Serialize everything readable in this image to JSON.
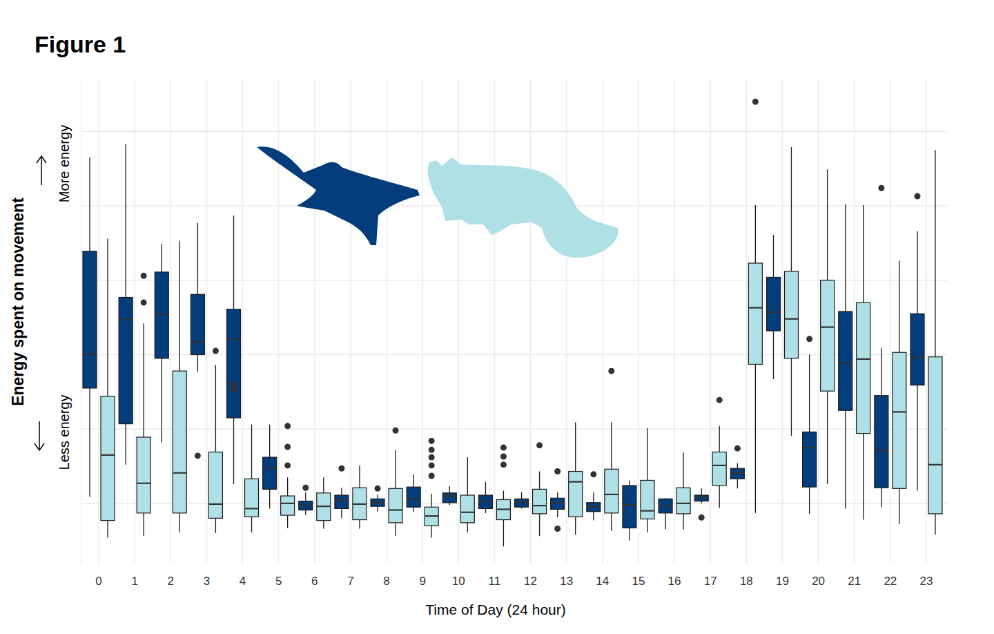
{
  "chart_data": {
    "type": "box",
    "title": "Figure 1",
    "x_label": "Time of Day (24 hour)",
    "y_label": "Energy spent on movement",
    "annotations": [
      "More energy",
      "Less energy"
    ],
    "categories": [
      0,
      1,
      2,
      3,
      4,
      5,
      6,
      7,
      8,
      9,
      10,
      11,
      12,
      13,
      14,
      15,
      16,
      17,
      18,
      19,
      20,
      21,
      22,
      23
    ],
    "ylim": [
      -0.8,
      5.7
    ],
    "yticks": [
      0,
      1,
      2,
      3,
      4,
      5
    ],
    "tick_labels": "x",
    "grid": true,
    "series": [
      {
        "color": "#033d7c",
        "values": [
          {
            "min": 0.09,
            "q1": 1.55,
            "median": 2.01,
            "q3": 3.39,
            "max": 4.65,
            "outliers": []
          },
          {
            "min": 0.52,
            "q1": 1.07,
            "median": 2.47,
            "q3": 2.77,
            "max": 4.83,
            "outliers": []
          },
          {
            "min": 0.82,
            "q1": 1.95,
            "median": 2.54,
            "q3": 3.11,
            "max": 3.49,
            "outliers": []
          },
          {
            "min": 1.77,
            "q1": 2.0,
            "median": 2.17,
            "q3": 2.81,
            "max": 3.77,
            "outliers": [
              0.64
            ]
          },
          {
            "min": 0.26,
            "q1": 1.15,
            "median": 2.21,
            "q3": 2.61,
            "max": 3.87,
            "outliers": [
              1.6,
              1.54
            ]
          },
          {
            "min": -0.07,
            "q1": 0.19,
            "median": 0.48,
            "q3": 0.62,
            "max": 1.06,
            "outliers": []
          },
          {
            "min": -0.16,
            "q1": -0.09,
            "median": -0.03,
            "q3": 0.03,
            "max": 0.15,
            "outliers": [
              0.21
            ]
          },
          {
            "min": -0.2,
            "q1": -0.07,
            "median": 0.04,
            "q3": 0.11,
            "max": 0.21,
            "outliers": [
              0.47
            ]
          },
          {
            "min": -0.11,
            "q1": -0.04,
            "median": 0.01,
            "q3": 0.06,
            "max": 0.12,
            "outliers": [
              0.2
            ]
          },
          {
            "min": -0.11,
            "q1": -0.05,
            "median": 0.06,
            "q3": 0.22,
            "max": 0.39,
            "outliers": []
          },
          {
            "min": -0.02,
            "q1": 0.01,
            "median": 0.1,
            "q3": 0.14,
            "max": 0.23,
            "outliers": []
          },
          {
            "min": -0.13,
            "q1": -0.07,
            "median": 0.03,
            "q3": 0.11,
            "max": 0.29,
            "outliers": []
          },
          {
            "min": -0.07,
            "q1": -0.05,
            "median": 0.02,
            "q3": 0.06,
            "max": 0.15,
            "outliers": []
          },
          {
            "min": -0.19,
            "q1": -0.08,
            "median": 0.01,
            "q3": 0.07,
            "max": 0.15,
            "outliers": [
              0.43,
              -0.34
            ]
          },
          {
            "min": -0.23,
            "q1": -0.11,
            "median": -0.04,
            "q3": 0.01,
            "max": 0.15,
            "outliers": [
              0.39
            ]
          },
          {
            "min": -0.5,
            "q1": -0.33,
            "median": -0.02,
            "q3": 0.24,
            "max": 0.31,
            "outliers": []
          },
          {
            "min": -0.35,
            "q1": -0.13,
            "median": -0.03,
            "q3": 0.06,
            "max": 0.07,
            "outliers": []
          },
          {
            "min": 0.0,
            "q1": 0.03,
            "median": 0.08,
            "q3": 0.11,
            "max": 0.2,
            "outliers": [
              -0.19
            ]
          },
          {
            "min": 0.2,
            "q1": 0.33,
            "median": 0.41,
            "q3": 0.47,
            "max": 0.54,
            "outliers": [
              0.74
            ]
          },
          {
            "min": 1.67,
            "q1": 2.32,
            "median": 2.57,
            "q3": 3.04,
            "max": 3.61,
            "outliers": []
          },
          {
            "min": -0.14,
            "q1": 0.22,
            "median": 0.75,
            "q3": 0.96,
            "max": 2.0,
            "outliers": [
              2.21
            ]
          },
          {
            "min": -0.07,
            "q1": 1.25,
            "median": 1.89,
            "q3": 2.58,
            "max": 4.02,
            "outliers": []
          },
          {
            "min": -0.05,
            "q1": 0.21,
            "median": 0.71,
            "q3": 1.45,
            "max": 2.09,
            "outliers": [
              4.24
            ]
          },
          {
            "min": 0.17,
            "q1": 1.59,
            "median": 1.96,
            "q3": 2.55,
            "max": 3.66,
            "outliers": [
              4.13
            ]
          }
        ]
      },
      {
        "color": "#aee0e6",
        "values": [
          {
            "min": -0.46,
            "q1": -0.23,
            "median": 0.65,
            "q3": 1.44,
            "max": 3.56,
            "outliers": []
          },
          {
            "min": -0.44,
            "q1": -0.13,
            "median": 0.27,
            "q3": 0.89,
            "max": 2.42,
            "outliers": [
              3.06,
              2.7
            ]
          },
          {
            "min": -0.39,
            "q1": -0.13,
            "median": 0.41,
            "q3": 1.78,
            "max": 3.53,
            "outliers": []
          },
          {
            "min": -0.4,
            "q1": -0.2,
            "median": -0.01,
            "q3": 0.69,
            "max": 1.86,
            "outliers": [
              2.05
            ]
          },
          {
            "min": -0.39,
            "q1": -0.18,
            "median": -0.07,
            "q3": 0.33,
            "max": 1.06,
            "outliers": []
          },
          {
            "min": -0.33,
            "q1": -0.16,
            "median": 0.0,
            "q3": 0.1,
            "max": 0.35,
            "outliers": [
              1.04,
              0.76,
              0.51
            ]
          },
          {
            "min": -0.34,
            "q1": -0.23,
            "median": -0.04,
            "q3": 0.14,
            "max": 0.35,
            "outliers": []
          },
          {
            "min": -0.34,
            "q1": -0.22,
            "median": -0.01,
            "q3": 0.21,
            "max": 0.51,
            "outliers": []
          },
          {
            "min": -0.44,
            "q1": -0.26,
            "median": -0.09,
            "q3": 0.2,
            "max": 0.72,
            "outliers": [
              0.98
            ]
          },
          {
            "min": -0.46,
            "q1": -0.3,
            "median": -0.17,
            "q3": -0.05,
            "max": 0.13,
            "outliers": [
              0.37,
              0.51,
              0.62,
              0.72,
              0.84
            ]
          },
          {
            "min": -0.39,
            "q1": -0.26,
            "median": -0.12,
            "q3": 0.11,
            "max": 0.62,
            "outliers": []
          },
          {
            "min": -0.58,
            "q1": -0.22,
            "median": -0.08,
            "q3": 0.05,
            "max": 0.17,
            "outliers": [
              0.52,
              0.63,
              0.75
            ]
          },
          {
            "min": -0.44,
            "q1": -0.14,
            "median": -0.03,
            "q3": 0.19,
            "max": 0.43,
            "outliers": [
              0.78
            ]
          },
          {
            "min": -0.42,
            "q1": -0.18,
            "median": 0.29,
            "q3": 0.43,
            "max": 1.09,
            "outliers": []
          },
          {
            "min": -0.37,
            "q1": -0.13,
            "median": 0.12,
            "q3": 0.46,
            "max": 1.09,
            "outliers": [
              1.78
            ]
          },
          {
            "min": -0.39,
            "q1": -0.21,
            "median": -0.1,
            "q3": 0.31,
            "max": 1.01,
            "outliers": []
          },
          {
            "min": -0.35,
            "q1": -0.14,
            "median": 0.0,
            "q3": 0.21,
            "max": 0.68,
            "outliers": []
          },
          {
            "min": -0.06,
            "q1": 0.24,
            "median": 0.51,
            "q3": 0.69,
            "max": 1.04,
            "outliers": [
              1.39
            ]
          },
          {
            "min": -0.13,
            "q1": 1.87,
            "median": 2.63,
            "q3": 3.23,
            "max": 4.01,
            "outliers": [
              5.4
            ]
          },
          {
            "min": 0.91,
            "q1": 1.95,
            "median": 2.48,
            "q3": 3.12,
            "max": 4.79,
            "outliers": []
          },
          {
            "min": 0.26,
            "q1": 1.51,
            "median": 2.37,
            "q3": 3.0,
            "max": 4.49,
            "outliers": []
          },
          {
            "min": -0.22,
            "q1": 0.94,
            "median": 1.94,
            "q3": 2.7,
            "max": 4.01,
            "outliers": []
          },
          {
            "min": -0.28,
            "q1": 0.2,
            "median": 1.23,
            "q3": 2.03,
            "max": 3.26,
            "outliers": []
          },
          {
            "min": -0.42,
            "q1": -0.14,
            "median": 0.52,
            "q3": 1.97,
            "max": 4.75,
            "outliers": []
          }
        ]
      }
    ]
  }
}
